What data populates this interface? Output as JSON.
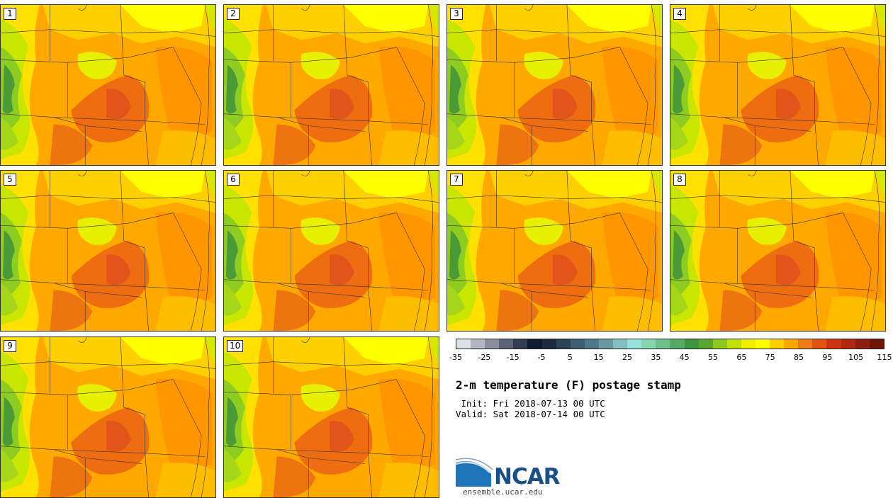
{
  "title": "2-m temperature (F) postage stamp",
  "init_label": " Init: Fri 2018-07-13 00 UTC",
  "valid_label": "Valid: Sat 2018-07-14 00 UTC",
  "logo_text": "NCAR",
  "site": "ensemble.ucar.edu",
  "members": [
    "1",
    "2",
    "3",
    "4",
    "5",
    "6",
    "7",
    "8",
    "9",
    "10"
  ],
  "colorbar": {
    "tick_labels": [
      "-35",
      "-25",
      "-15",
      "-5",
      "5",
      "15",
      "25",
      "35",
      "45",
      "55",
      "65",
      "75",
      "85",
      "95",
      "105",
      "115"
    ],
    "colors": [
      "#dde0e6",
      "#b4b8c2",
      "#8a8e9e",
      "#5e6478",
      "#333b52",
      "#0e1a33",
      "#1c2b40",
      "#2b4458",
      "#3c5e70",
      "#4f7888",
      "#6a98a4",
      "#86bec0",
      "#94e2d8",
      "#86d6b0",
      "#6fc08a",
      "#55ab66",
      "#3f9640",
      "#5aa632",
      "#8fc81e",
      "#c2e00a",
      "#f0f000",
      "#ffff00",
      "#ffd000",
      "#ffa500",
      "#f07a18",
      "#e25412",
      "#cc3510",
      "#b02812",
      "#8e1e10",
      "#6e1608"
    ]
  }
}
